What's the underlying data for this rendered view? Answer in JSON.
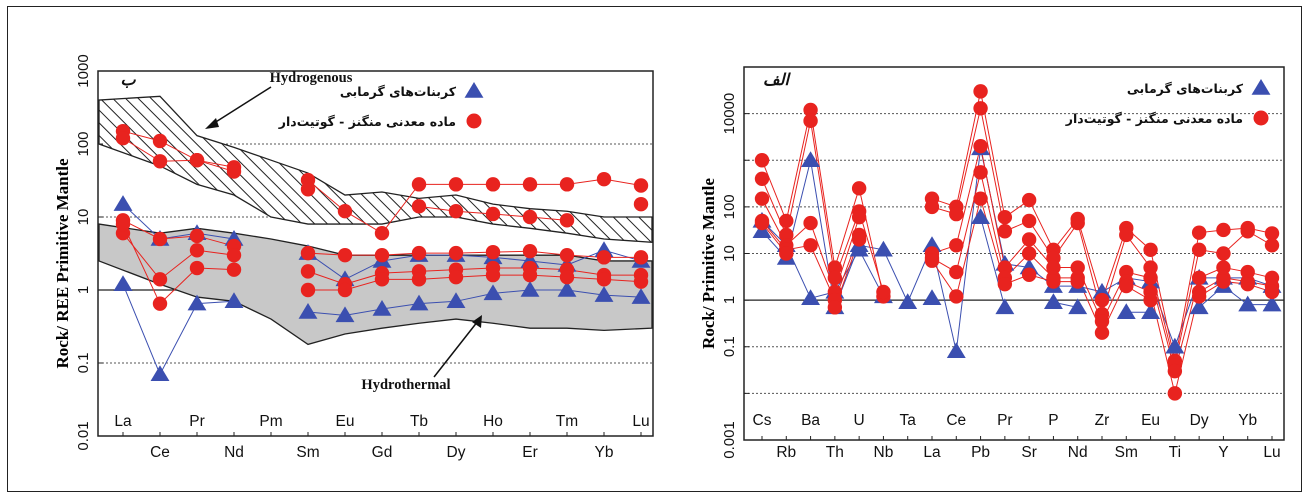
{
  "chart_data": [
    {
      "type": "line",
      "panel_label": "ب",
      "ylabel": "Rock/ REE Primitive Mantle",
      "yscale": "log",
      "ylim": [
        0.01,
        1000
      ],
      "yticks": [
        "1000",
        "100",
        "10",
        "1",
        "0.1",
        "0.01"
      ],
      "categories": [
        "La",
        "Ce",
        "Pr",
        "Nd",
        "Pm",
        "Sm",
        "Eu",
        "Gd",
        "Tb",
        "Dy",
        "Ho",
        "Er",
        "Tm",
        "Yb",
        "Lu"
      ],
      "legend": [
        {
          "name": "کربنات‌های گرمابی",
          "marker": "triangle",
          "color": "#3b4fb0"
        },
        {
          "name": "ماده معدنی منگنز - گوتیت‌دار",
          "marker": "circle",
          "color": "#e8231f"
        }
      ],
      "annotations": [
        "Hydrogenous",
        "Hydrothermal"
      ],
      "fields": {
        "hydrogenous": {
          "upper": [
            400,
            450,
            130,
            90,
            60,
            40,
            20,
            22,
            18,
            20,
            15,
            13,
            12,
            10,
            10
          ],
          "lower": [
            100,
            50,
            28,
            20,
            10,
            8,
            8,
            8,
            10,
            10,
            8,
            7,
            6,
            5,
            4.5
          ]
        },
        "hydrothermal": {
          "upper": [
            8,
            6,
            7,
            6,
            5,
            4,
            3,
            3,
            3,
            3,
            3,
            3,
            3,
            2.5,
            2.5
          ],
          "lower": [
            2.5,
            1.2,
            0.8,
            0.7,
            0.4,
            0.18,
            0.25,
            0.3,
            0.35,
            0.4,
            0.35,
            0.3,
            0.3,
            0.28,
            0.3
          ]
        }
      },
      "series": [
        {
          "marker": "triangle",
          "color": "#3b4fb0",
          "values": [
            15,
            5,
            6,
            5,
            null,
            3.2,
            1.4,
            2.5,
            3,
            3,
            2.8,
            2.5,
            2.2,
            3.5,
            2.5
          ]
        },
        {
          "marker": "triangle",
          "color": "#3b4fb0",
          "values": [
            1.2,
            0.07,
            0.65,
            0.7,
            null,
            0.5,
            0.45,
            0.55,
            0.65,
            0.7,
            0.9,
            1.0,
            1.0,
            0.85,
            0.8
          ]
        },
        {
          "marker": "circle",
          "color": "#e8231f",
          "values": [
            150,
            110,
            60,
            48,
            null,
            32,
            12,
            6,
            28,
            28,
            28,
            28,
            28,
            33,
            27
          ]
        },
        {
          "marker": "circle",
          "color": "#e8231f",
          "values": [
            120,
            58,
            60,
            42,
            null,
            24,
            null,
            null,
            14,
            12,
            11,
            10,
            9,
            null,
            15
          ]
        },
        {
          "marker": "circle",
          "color": "#e8231f",
          "values": [
            9,
            5,
            5.5,
            4,
            null,
            3.2,
            3,
            3,
            3.2,
            3.2,
            3.3,
            3.4,
            3.0,
            2.8,
            2.8
          ]
        },
        {
          "marker": "circle",
          "color": "#e8231f",
          "values": [
            6,
            1.4,
            3.5,
            3,
            null,
            1.8,
            1.2,
            1.7,
            1.8,
            1.9,
            2.0,
            2.0,
            1.9,
            1.6,
            1.6
          ]
        },
        {
          "marker": "circle",
          "color": "#e8231f",
          "values": [
            8,
            0.65,
            2.0,
            1.9,
            null,
            1.0,
            1.0,
            1.4,
            1.4,
            1.5,
            1.6,
            1.6,
            1.5,
            1.4,
            1.3
          ]
        }
      ]
    },
    {
      "type": "line",
      "panel_label": "الف",
      "ylabel": "Rock/ Primitive Mantle",
      "yscale": "log",
      "ylim": [
        0.001,
        100000
      ],
      "yticks": [
        "10000",
        "1000",
        "100",
        "10",
        "1",
        "0.1",
        "0.01",
        "0.001"
      ],
      "yticks_labeled": [
        "10000",
        "100",
        "10",
        "1",
        "0.1",
        "0.001"
      ],
      "categories": [
        "Cs",
        "Rb",
        "Ba",
        "Th",
        "U",
        "Nb",
        "Ta",
        "La",
        "Ce",
        "Pb",
        "Pr",
        "Sr",
        "P",
        "Nd",
        "Zr",
        "Sm",
        "Eu",
        "Ti",
        "Dy",
        "Y",
        "Yb",
        "Lu"
      ],
      "legend": [
        {
          "name": "کربنات‌های گرمابی",
          "marker": "triangle",
          "color": "#3b4fb0"
        },
        {
          "name": "ماده معدنی منگنز - گوتیت‌دار",
          "marker": "circle",
          "color": "#e8231f"
        }
      ],
      "series": [
        {
          "marker": "triangle",
          "color": "#3b4fb0",
          "values": [
            30,
            8,
            1000,
            0.7,
            15,
            12,
            0.9,
            15,
            0.08,
            1800,
            6,
            5,
            2,
            2,
            1.5,
            3,
            2.5,
            0.1,
            3,
            3,
            3,
            2
          ]
        },
        {
          "marker": "triangle",
          "color": "#3b4fb0",
          "values": [
            50,
            15,
            1.1,
            1.5,
            12,
            1.2,
            null,
            1.1,
            null,
            60,
            0.7,
            null,
            0.9,
            0.7,
            null,
            0.55,
            0.55,
            null,
            0.7,
            2.0,
            0.8,
            0.8
          ]
        },
        {
          "marker": "circle",
          "color": "#e8231f",
          "values": [
            1000,
            50,
            12000,
            5,
            250,
            1.2,
            null,
            150,
            100,
            30000,
            60,
            140,
            12,
            55,
            1.0,
            35,
            12,
            0.05,
            28,
            32,
            35,
            27
          ]
        },
        {
          "marker": "circle",
          "color": "#e8231f",
          "values": [
            400,
            25,
            7000,
            3,
            80,
            1.5,
            null,
            100,
            70,
            13000,
            30,
            50,
            8,
            45,
            0.5,
            25,
            5,
            0.04,
            12,
            10,
            30,
            15
          ]
        },
        {
          "marker": "circle",
          "color": "#e8231f",
          "values": [
            150,
            15,
            45,
            1.5,
            60,
            null,
            null,
            10,
            15,
            2000,
            5,
            20,
            5,
            5,
            0.35,
            4,
            3,
            0.03,
            3,
            5,
            4,
            3
          ]
        },
        {
          "marker": "circle",
          "color": "#e8231f",
          "values": [
            50,
            12,
            15,
            1.0,
            25,
            null,
            null,
            8,
            4,
            550,
            3,
            10,
            3,
            3,
            0.2,
            2.5,
            1.5,
            0.01,
            1.5,
            3,
            2.5,
            2
          ]
        },
        {
          "marker": "circle",
          "color": "#e8231f",
          "values": [
            45,
            10,
            null,
            0.7,
            20,
            null,
            null,
            7,
            1.2,
            150,
            2.2,
            3.5,
            2.5,
            2.5,
            null,
            2,
            1,
            null,
            1.2,
            2.5,
            2.2,
            1.5
          ]
        }
      ]
    }
  ]
}
